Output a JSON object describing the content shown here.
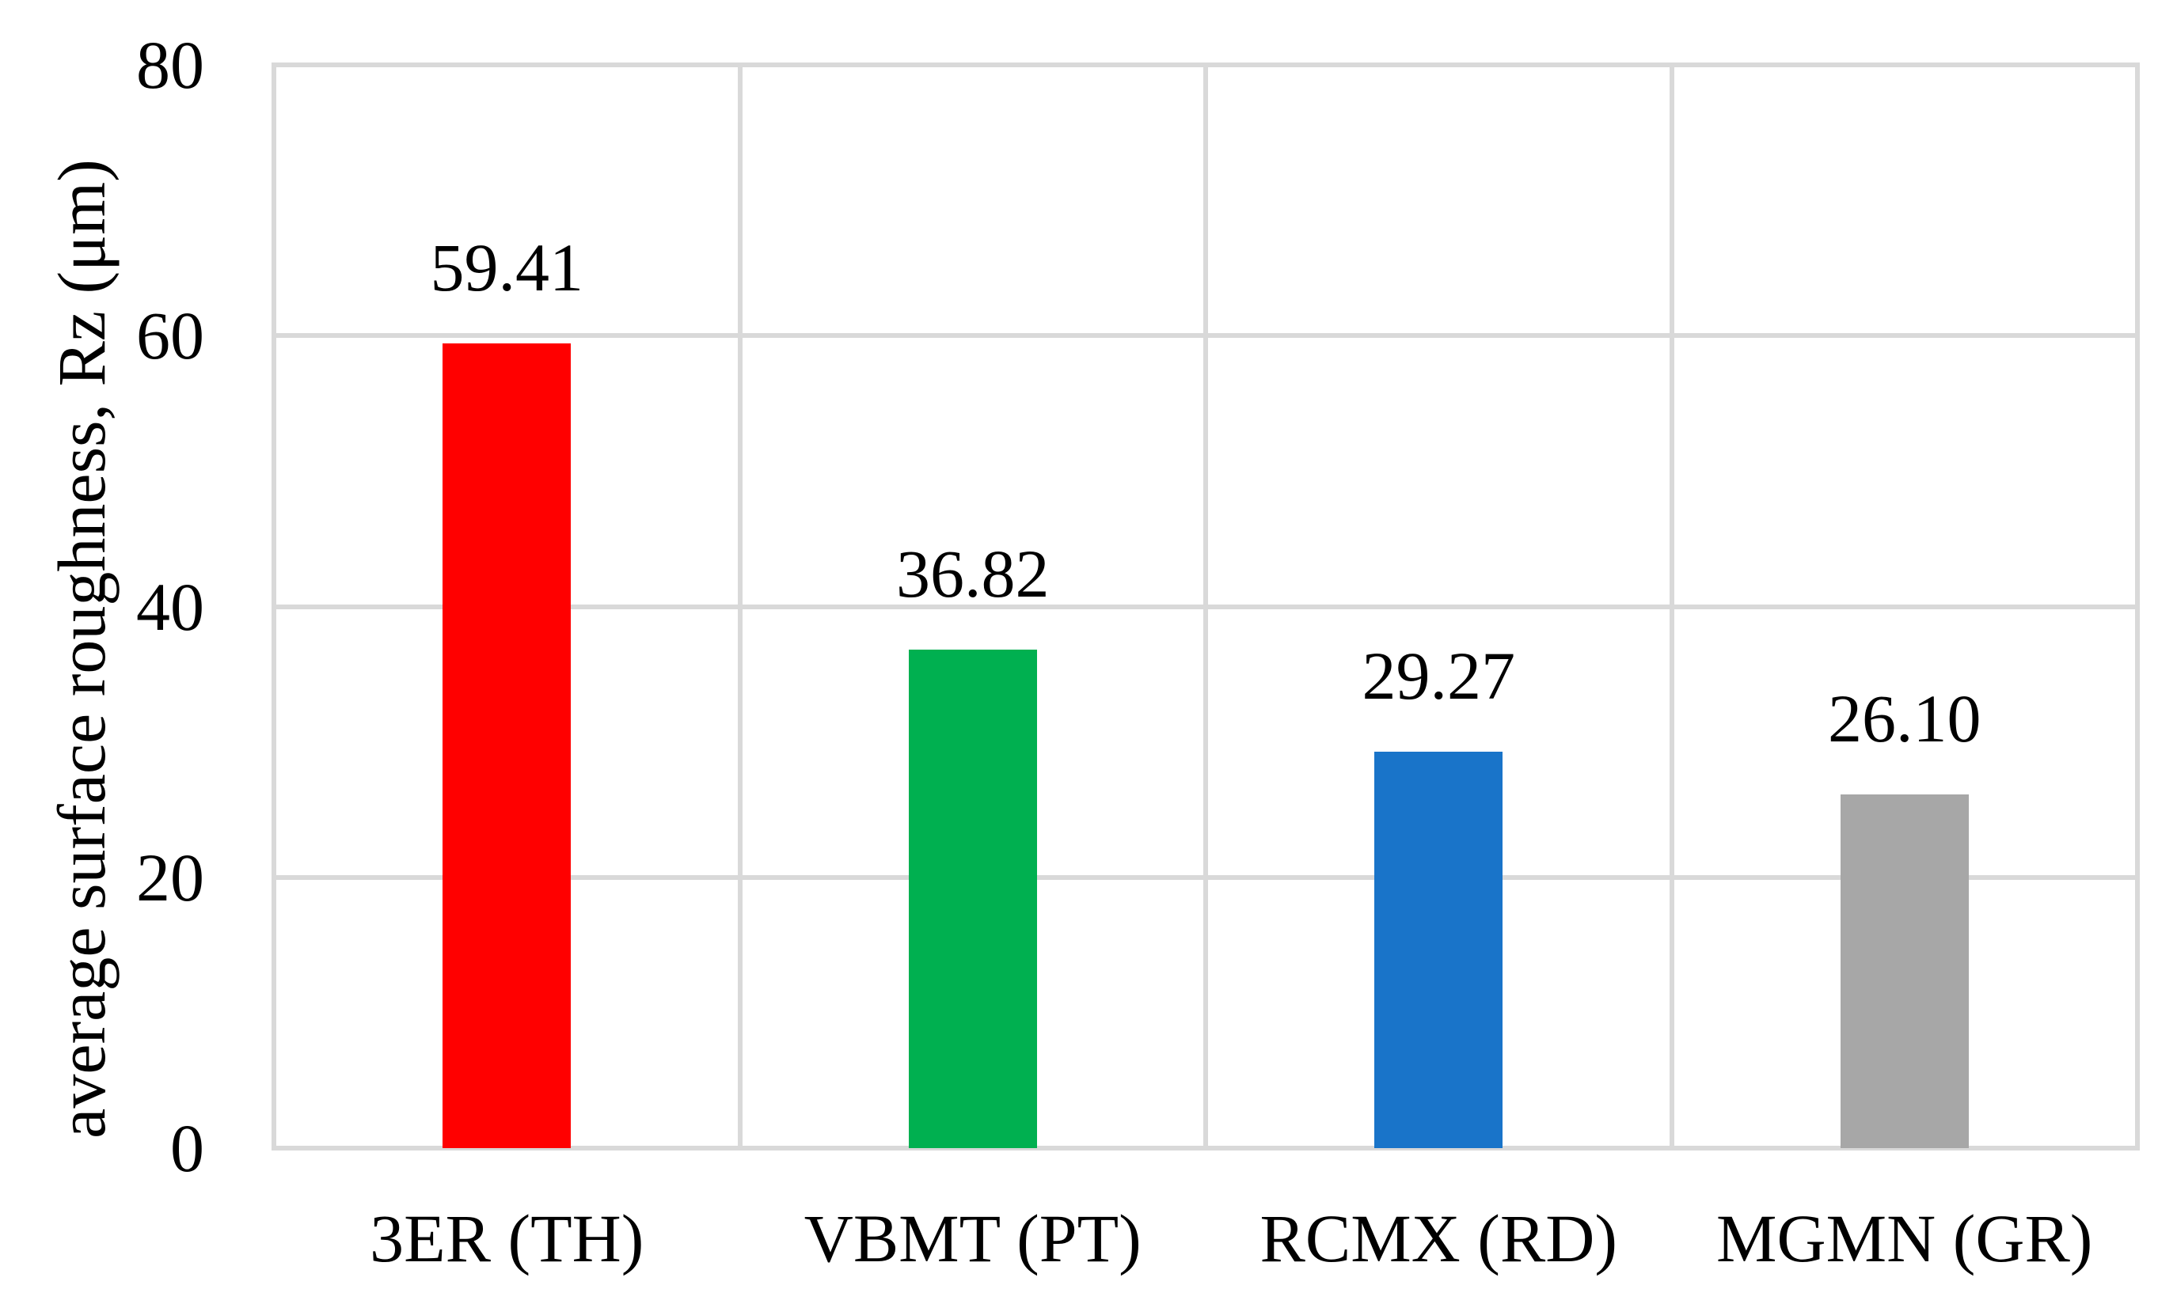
{
  "figure": {
    "y_axis_title": "average surface roughness, Rz (μm)"
  },
  "chart_data": {
    "type": "bar",
    "categories": [
      "3ER (TH)",
      "VBMT (PT)",
      "RCMX (RD)",
      "MGMN (GR)"
    ],
    "values": [
      59.41,
      36.82,
      29.27,
      26.1
    ],
    "value_labels": [
      "59.41",
      "36.82",
      "29.27",
      "26.10"
    ],
    "bar_colors": [
      "#FF0000",
      "#00B050",
      "#1974C9",
      "#A7A7A7"
    ],
    "title": "",
    "xlabel": "",
    "ylabel": "average surface roughness, Rz (μm)",
    "ylim": [
      0,
      80
    ],
    "yticks": [
      0,
      20,
      40,
      60,
      80
    ],
    "ytick_labels": [
      "0",
      "20",
      "40",
      "60",
      "80"
    ],
    "grid": "on",
    "gridline_color": "#D9D9D9",
    "plot_border_color": "#D9D9D9",
    "legend": "none",
    "data_label_position": "outside-end"
  }
}
